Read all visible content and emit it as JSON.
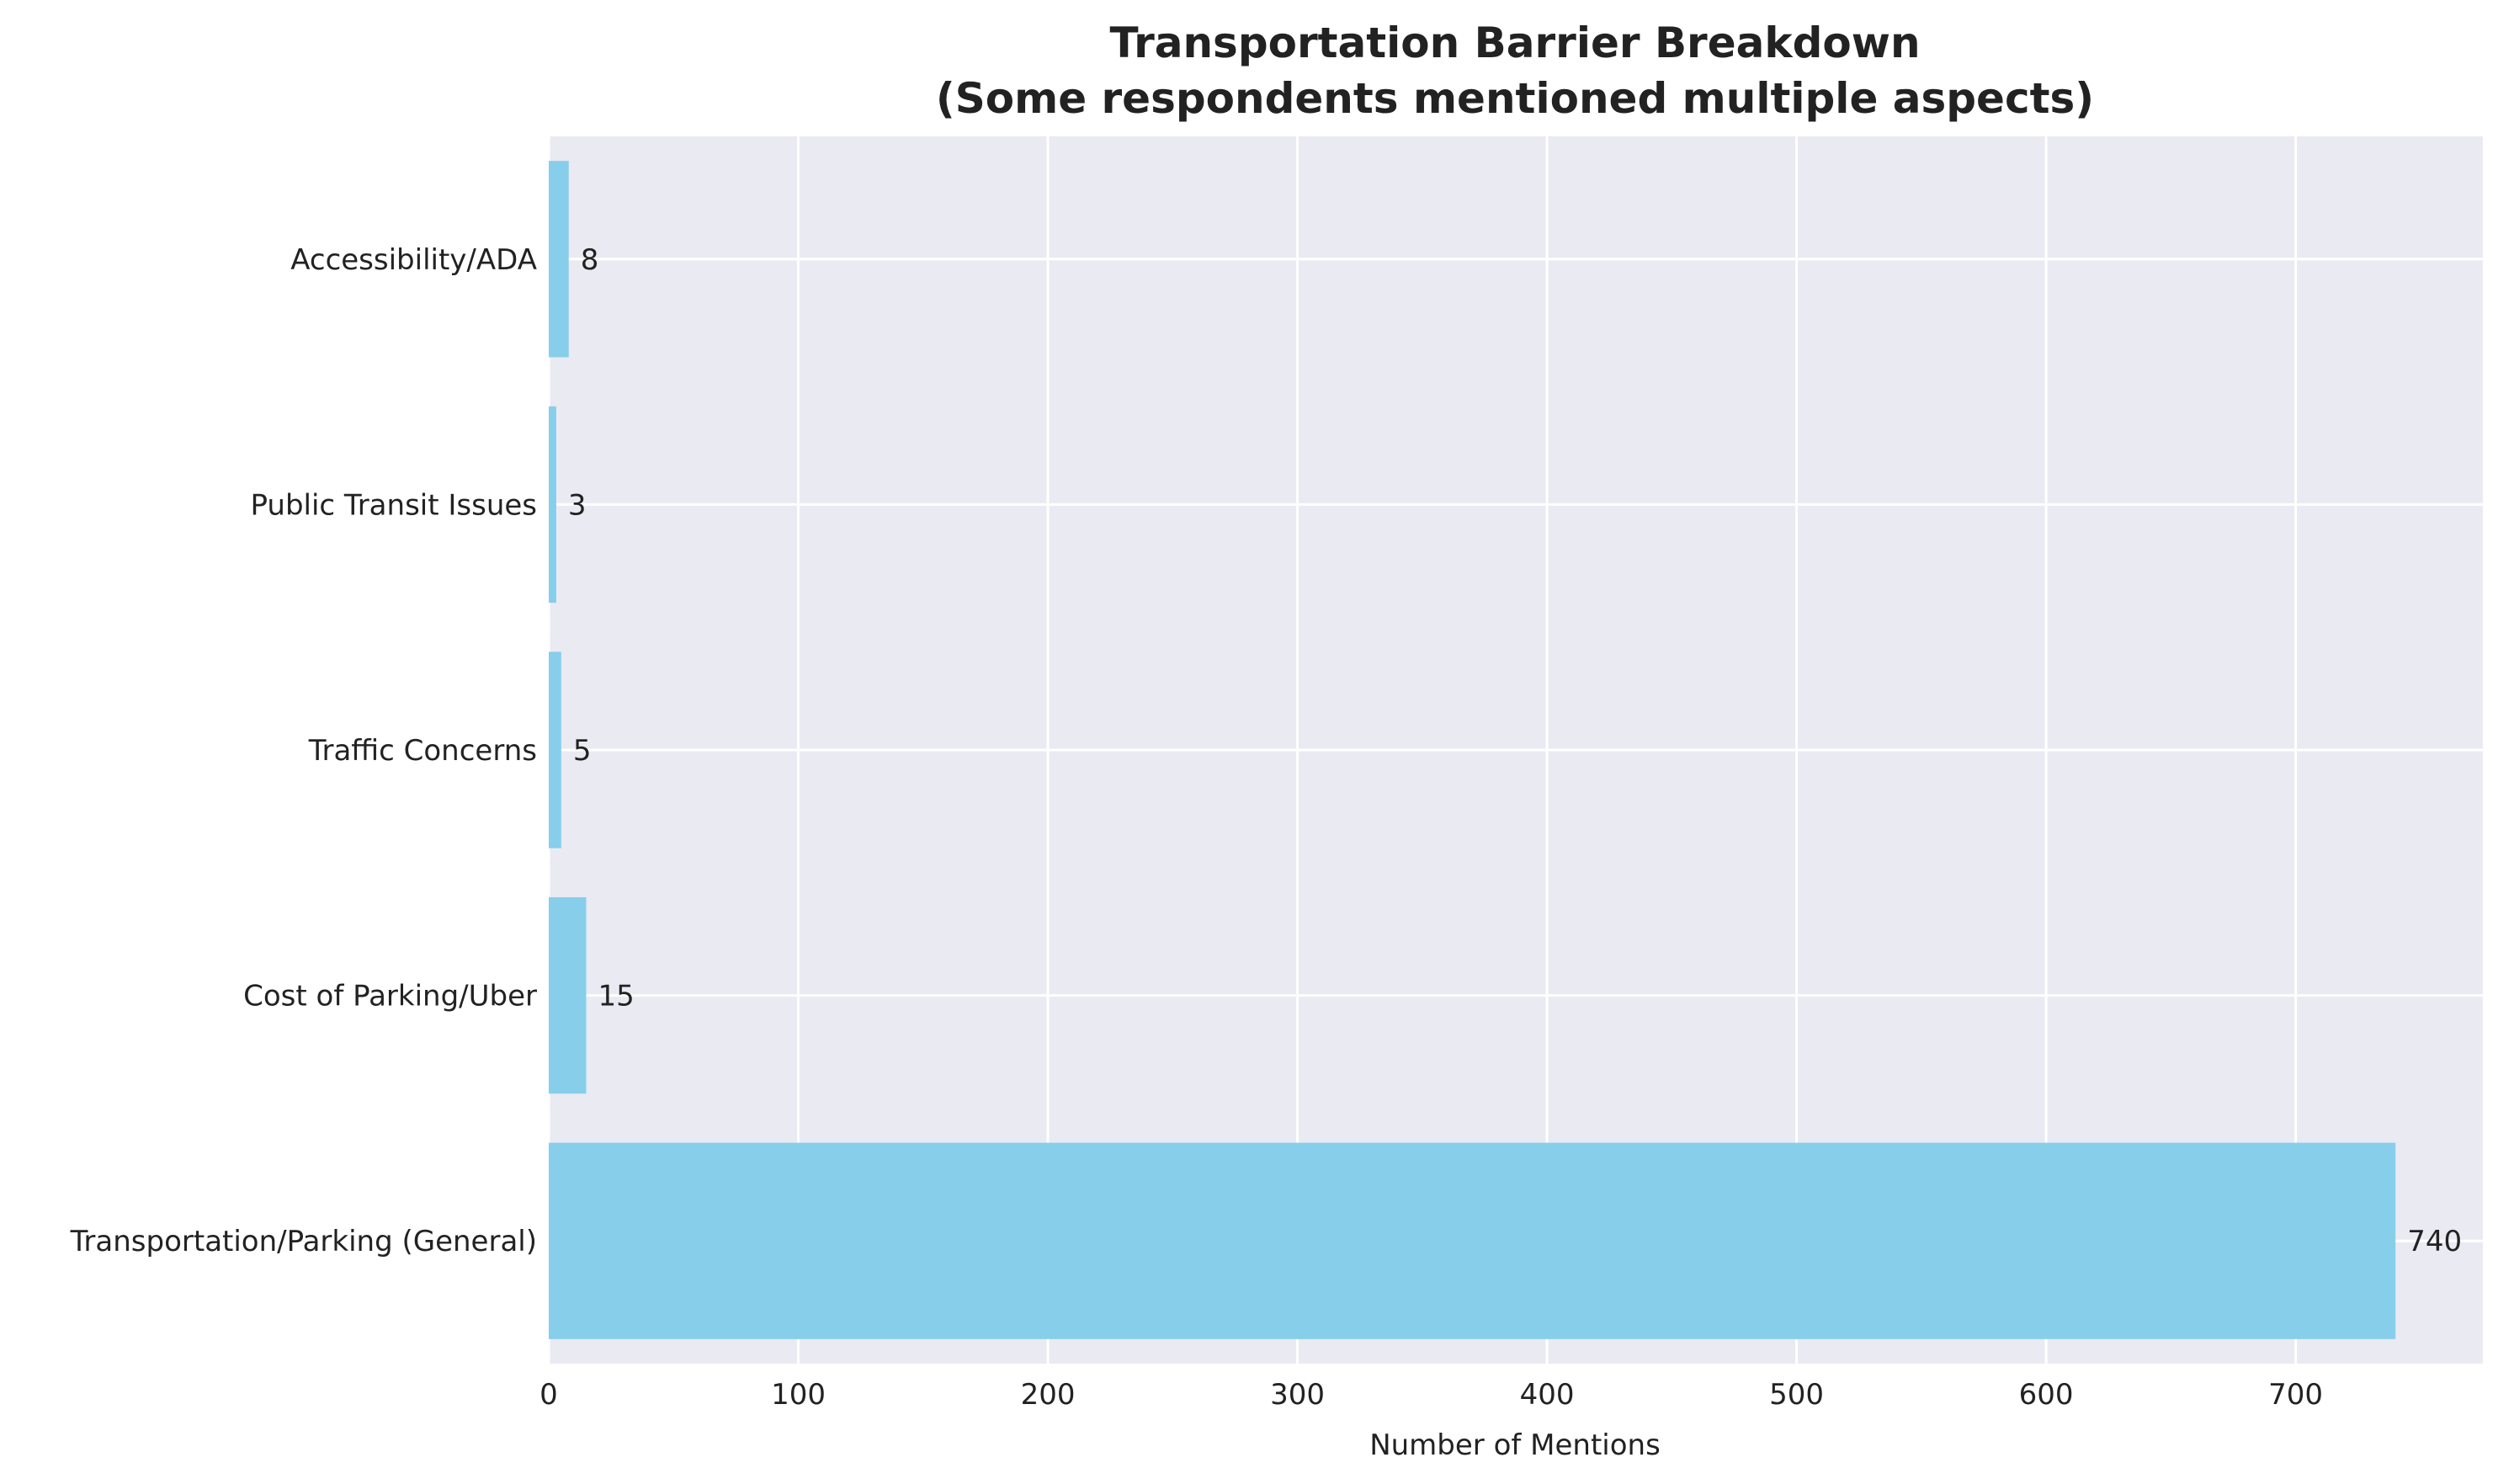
{
  "chart_data": {
    "type": "bar",
    "orientation": "horizontal",
    "title": "Transportation Barrier Breakdown",
    "subtitle": "(Some respondents mentioned multiple aspects)",
    "xlabel": "Number of Mentions",
    "ylabel": "",
    "categories": [
      "Transportation/Parking (General)",
      "Cost of Parking/Uber",
      "Traffic Concerns",
      "Public Transit Issues",
      "Accessibility/ADA"
    ],
    "values": [
      740,
      15,
      5,
      3,
      8
    ],
    "data_labels": [
      "740",
      "15",
      "5",
      "3",
      "8"
    ],
    "xlim": [
      0,
      775
    ],
    "xticks": [
      0,
      100,
      200,
      300,
      400,
      500,
      600,
      700
    ],
    "xtick_labels": [
      "0",
      "100",
      "200",
      "300",
      "400",
      "500",
      "600",
      "700"
    ],
    "grid": true,
    "colors": {
      "bar": "#87CEEB",
      "plot_background": "#EAEAF2",
      "grid": "#FFFFFF",
      "text": "#222222"
    }
  }
}
